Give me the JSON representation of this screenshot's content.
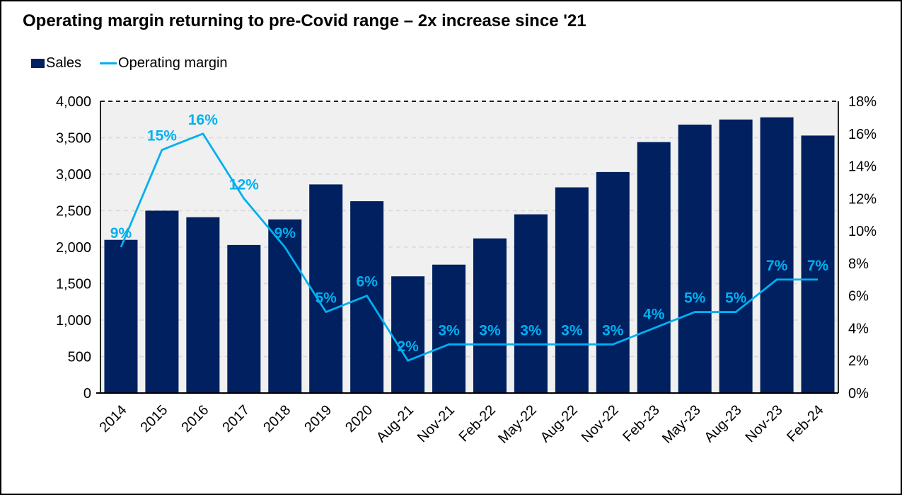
{
  "chart_data": {
    "type": "combo-bar-line",
    "title": "Operating margin returning to pre-Covid range – 2x increase since '21",
    "categories": [
      "2014",
      "2015",
      "2016",
      "2017",
      "2018",
      "2019",
      "2020",
      "Aug-21",
      "Nov-21",
      "Feb-22",
      "May-22",
      "Aug-22",
      "Nov-22",
      "Feb-23",
      "May-23",
      "Aug-23",
      "Nov-23",
      "Feb-24"
    ],
    "series": [
      {
        "name": "Sales",
        "type": "bar",
        "axis": "left",
        "color": "#002060",
        "values": [
          2100,
          2500,
          2410,
          2030,
          2380,
          2860,
          2630,
          1600,
          1760,
          2120,
          2450,
          2820,
          3030,
          3440,
          3680,
          3750,
          3780,
          3530
        ]
      },
      {
        "name": "Operating margin",
        "type": "line",
        "axis": "right",
        "color": "#00B0F0",
        "values": [
          9,
          15,
          16,
          12,
          9,
          5,
          6,
          2,
          3,
          3,
          3,
          3,
          3,
          4,
          5,
          5,
          7,
          7
        ],
        "labels": [
          "9%",
          "15%",
          "16%",
          "12%",
          "9%",
          "5%",
          "6%",
          "2%",
          "3%",
          "3%",
          "3%",
          "3%",
          "3%",
          "4%",
          "5%",
          "5%",
          "7%",
          "7%"
        ]
      }
    ],
    "left_axis": {
      "min": 0,
      "max": 4000,
      "step": 500,
      "tick_labels": [
        "0",
        "500",
        "1,000",
        "1,500",
        "2,000",
        "2,500",
        "3,000",
        "3,500",
        "4,000"
      ]
    },
    "right_axis": {
      "min": 0,
      "max": 18,
      "step": 2,
      "tick_labels": [
        "0%",
        "2%",
        "4%",
        "6%",
        "8%",
        "10%",
        "12%",
        "14%",
        "16%",
        "18%"
      ]
    },
    "grid": "horizontal-dashed",
    "plot_background": "#F0F0F0",
    "gridline_color": "#D9D9D9",
    "axis_color": "#000000",
    "legend_position": "top-left"
  }
}
